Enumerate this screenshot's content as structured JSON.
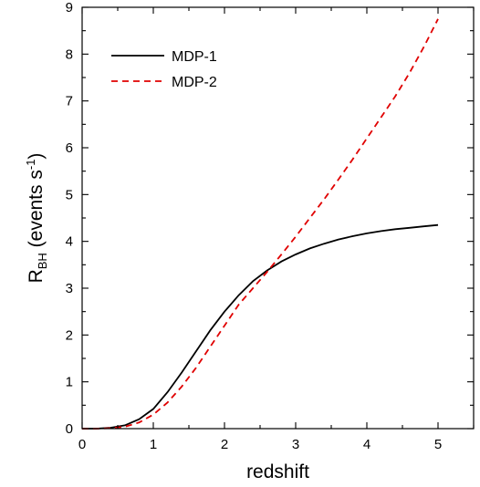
{
  "chart_data": {
    "type": "line",
    "title": "",
    "xlabel": "redshift",
    "ylabel": {
      "main": "R",
      "subscript": "BH",
      "units_prefix": " (events s",
      "superscript": "-1",
      "units_suffix": ")"
    },
    "xlim": [
      0,
      5.5
    ],
    "ylim": [
      0,
      9
    ],
    "x_ticks": [
      "0",
      "1",
      "2",
      "3",
      "4",
      "5"
    ],
    "y_ticks": [
      "0",
      "1",
      "2",
      "3",
      "4",
      "5",
      "6",
      "7",
      "8",
      "9"
    ],
    "grid": false,
    "legend_position": "top-left",
    "series": [
      {
        "name": "MDP-1",
        "color": "#000000",
        "style": "solid",
        "x": [
          0,
          0.2,
          0.4,
          0.6,
          0.8,
          1.0,
          1.2,
          1.4,
          1.6,
          1.8,
          2.0,
          2.2,
          2.4,
          2.6,
          2.8,
          3.0,
          3.2,
          3.4,
          3.6,
          3.8,
          4.0,
          4.2,
          4.4,
          4.6,
          4.8,
          5.0
        ],
        "values": [
          0,
          0.0,
          0.02,
          0.07,
          0.2,
          0.42,
          0.78,
          1.2,
          1.65,
          2.1,
          2.5,
          2.85,
          3.15,
          3.38,
          3.57,
          3.72,
          3.85,
          3.95,
          4.04,
          4.11,
          4.17,
          4.22,
          4.26,
          4.29,
          4.32,
          4.35
        ]
      },
      {
        "name": "MDP-2",
        "color": "#e00000",
        "style": "dashed",
        "x": [
          0,
          0.2,
          0.4,
          0.6,
          0.8,
          1.0,
          1.2,
          1.4,
          1.6,
          1.8,
          2.0,
          2.2,
          2.4,
          2.6,
          2.8,
          3.0,
          3.2,
          3.4,
          3.6,
          3.8,
          4.0,
          4.2,
          4.4,
          4.6,
          4.8,
          5.0
        ],
        "values": [
          0,
          0.0,
          0.01,
          0.04,
          0.13,
          0.3,
          0.56,
          0.9,
          1.3,
          1.75,
          2.2,
          2.65,
          3.0,
          3.35,
          3.72,
          4.1,
          4.5,
          4.9,
          5.32,
          5.75,
          6.2,
          6.65,
          7.1,
          7.6,
          8.15,
          8.75
        ]
      }
    ]
  }
}
